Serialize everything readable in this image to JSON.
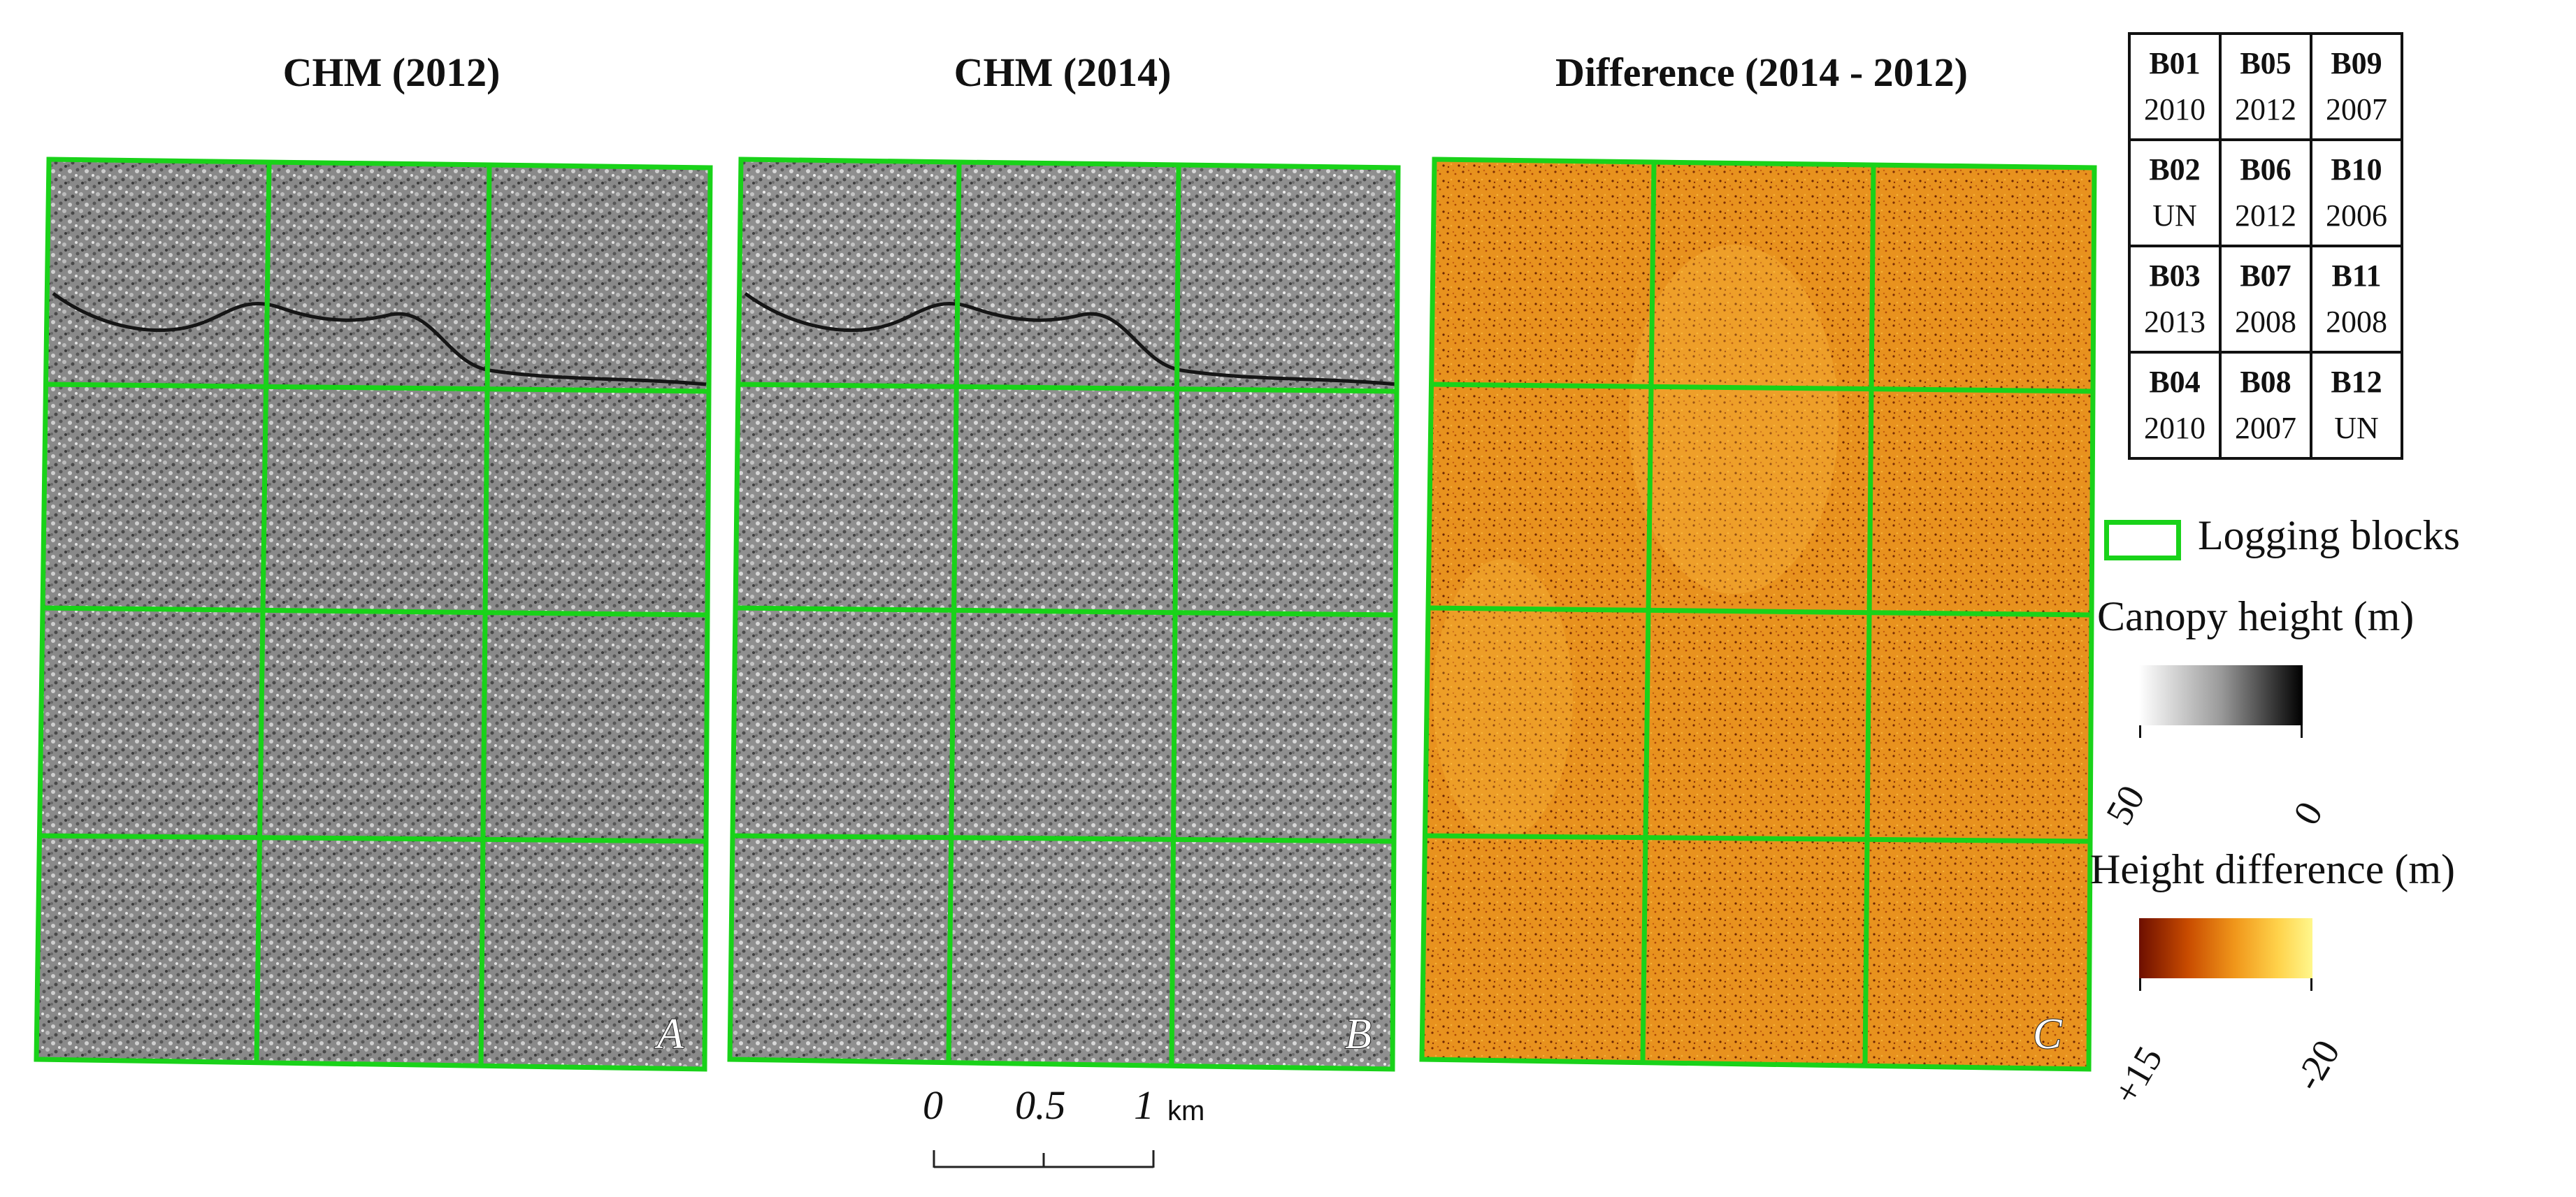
{
  "panels": [
    {
      "id": "A",
      "title": "CHM (2012)",
      "type": "canopy_height_model"
    },
    {
      "id": "B",
      "title": "CHM (2014)",
      "type": "canopy_height_model"
    },
    {
      "id": "C",
      "title": "Difference (2014 - 2012)",
      "type": "height_difference"
    }
  ],
  "block_table": [
    [
      {
        "block": "B01",
        "year": "2010"
      },
      {
        "block": "B05",
        "year": "2012"
      },
      {
        "block": "B09",
        "year": "2007"
      }
    ],
    [
      {
        "block": "B02",
        "year": "UN"
      },
      {
        "block": "B06",
        "year": "2012"
      },
      {
        "block": "B10",
        "year": "2006"
      }
    ],
    [
      {
        "block": "B03",
        "year": "2013"
      },
      {
        "block": "B07",
        "year": "2008"
      },
      {
        "block": "B11",
        "year": "2008"
      }
    ],
    [
      {
        "block": "B04",
        "year": "2010"
      },
      {
        "block": "B08",
        "year": "2007"
      },
      {
        "block": "B12",
        "year": "UN"
      }
    ]
  ],
  "legend": {
    "logging_blocks": "Logging blocks",
    "canopy_height_title": "Canopy height (m)",
    "canopy_min_label": "50",
    "canopy_max_label": "0",
    "height_diff_title": "Height difference (m)",
    "diff_min_label": "+15",
    "diff_max_label": "-20"
  },
  "scale_bar": {
    "labels": [
      "0",
      "0.5",
      "1"
    ],
    "unit": "km"
  },
  "colors": {
    "block_outline": "#19d219",
    "canopy_gray": "#8c8c8c",
    "diff_orange": "#e8921e"
  }
}
